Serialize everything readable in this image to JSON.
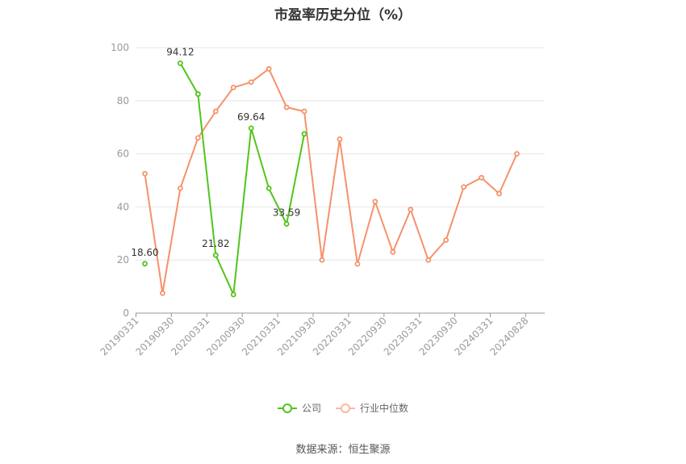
{
  "chart_data": {
    "type": "line",
    "title": "市盈率历史分位（%）",
    "xlabel": "",
    "ylabel": "",
    "ylim": [
      0,
      100
    ],
    "yticks": [
      0,
      20,
      40,
      60,
      80,
      100
    ],
    "x_tick_labels": [
      "20190331",
      "20190930",
      "20200331",
      "20200930",
      "20210331",
      "20210930",
      "20220331",
      "20220930",
      "20230331",
      "20230930",
      "20240331",
      "20240828"
    ],
    "grid": true,
    "legend_position": "bottom",
    "series": [
      {
        "name": "公司",
        "color": "#52c41a",
        "values": [
          18.6,
          null,
          94.12,
          82.5,
          21.82,
          7.0,
          69.64,
          47.0,
          33.59,
          67.5,
          null,
          null,
          null,
          null,
          null,
          null,
          null,
          null,
          null,
          null,
          null,
          null
        ]
      },
      {
        "name": "行业中位数",
        "color": "#f5926a",
        "values": [
          52.5,
          7.5,
          47.0,
          66.0,
          76.0,
          85.0,
          87.0,
          92.0,
          77.5,
          76.0,
          20.0,
          65.5,
          18.5,
          42.0,
          23.0,
          39.0,
          20.0,
          27.5,
          47.5,
          51.0,
          45.0,
          60.0
        ]
      }
    ],
    "data_labels": [
      {
        "index": 0,
        "text": "18.60"
      },
      {
        "index": 2,
        "text": "94.12"
      },
      {
        "index": 4,
        "text": "21.82"
      },
      {
        "index": 6,
        "text": "69.64"
      },
      {
        "index": 8,
        "text": "33.59"
      }
    ]
  },
  "legend": {
    "company": "公司",
    "industry": "行业中位数"
  },
  "source": "数据来源：恒生聚源"
}
